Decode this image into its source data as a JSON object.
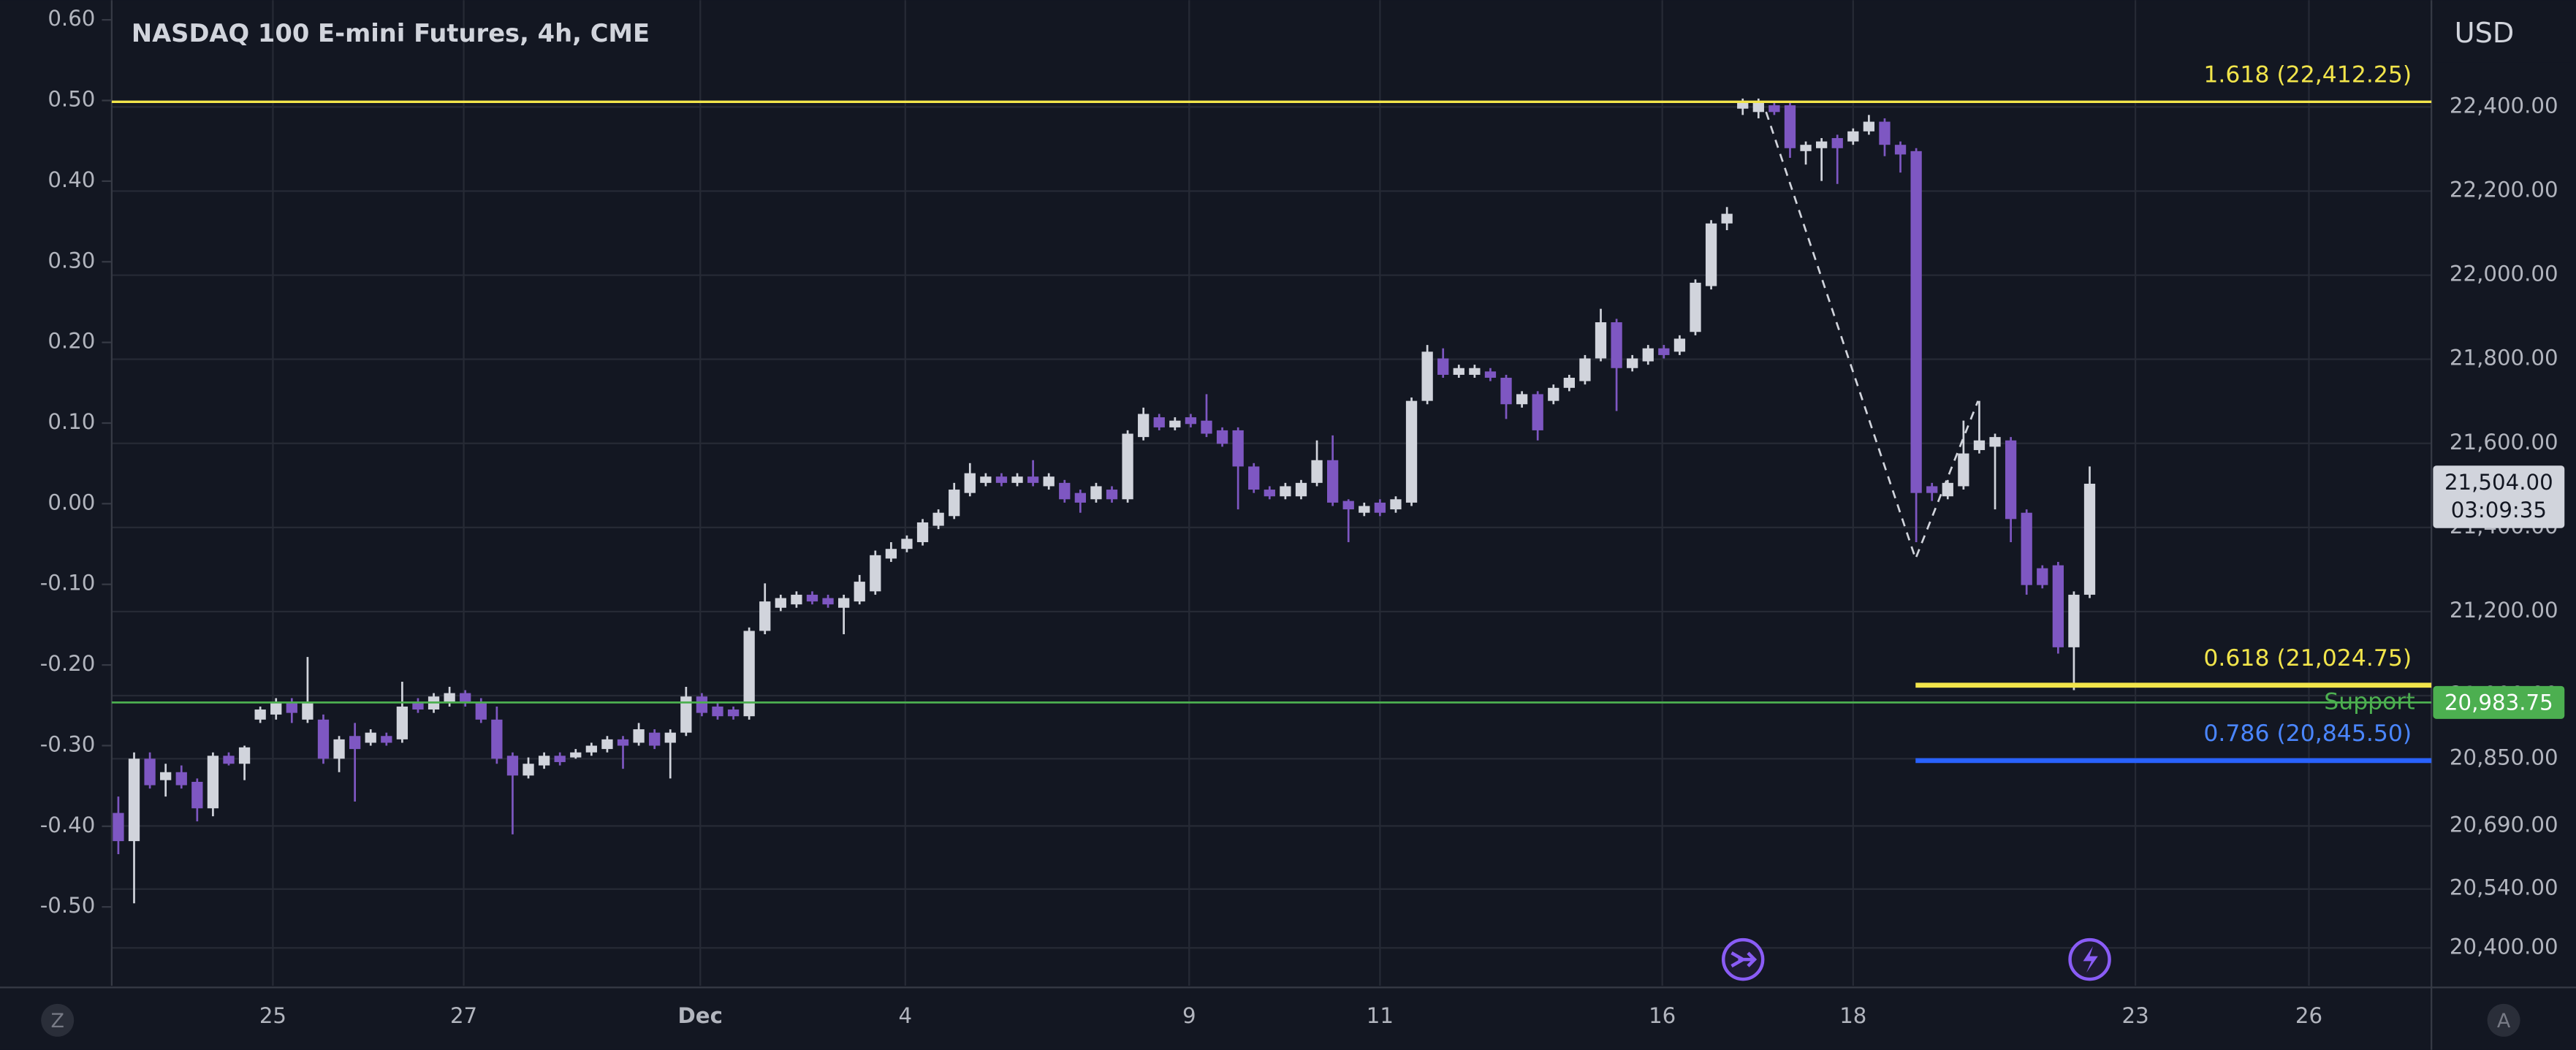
{
  "chart_data": {
    "type": "candlestick",
    "title": "NASDAQ 100 E-mini Futures, 4h, CME",
    "currency": "USD",
    "up_color": "#d1d4dc",
    "down_color": "#7e57c2",
    "grid": true,
    "xlim": [
      -0.42,
      146.67
    ],
    "xticks": [
      {
        "value": 9.8,
        "label": "25"
      },
      {
        "value": 21.9,
        "label": "27"
      },
      {
        "value": 36.9,
        "label": "Dec"
      },
      {
        "value": 49.9,
        "label": "4"
      },
      {
        "value": 67.9,
        "label": "9"
      },
      {
        "value": 80,
        "label": "11"
      },
      {
        "value": 97.9,
        "label": "16"
      },
      {
        "value": 110,
        "label": "18"
      },
      {
        "value": 127.9,
        "label": "23"
      },
      {
        "value": 138.9,
        "label": "26"
      }
    ],
    "ylim": [
      20310,
      22654
    ],
    "yticks": [
      {
        "value": 22400,
        "label": "22,400.00"
      },
      {
        "value": 22200,
        "label": "22,200.00"
      },
      {
        "value": 22000,
        "label": "22,000.00"
      },
      {
        "value": 21800,
        "label": "21,800.00"
      },
      {
        "value": 21600,
        "label": "21,600.00"
      },
      {
        "value": 21400,
        "label": "21,400.00"
      },
      {
        "value": 21200,
        "label": "21,200.00"
      },
      {
        "value": 21000,
        "label": "21,000.00"
      },
      {
        "value": 20850,
        "label": "20,850.00"
      },
      {
        "value": 20690,
        "label": "20,690.00"
      },
      {
        "value": 20540,
        "label": "20,540.00"
      },
      {
        "value": 20400,
        "label": "20,400.00"
      }
    ],
    "y2lim": [
      -0.5978,
      0.6244
    ],
    "y2ticks": [
      {
        "value": 0.6,
        "label": "0.60"
      },
      {
        "value": 0.5,
        "label": "0.50"
      },
      {
        "value": 0.4,
        "label": "0.40"
      },
      {
        "value": 0.3,
        "label": "0.30"
      },
      {
        "value": 0.2,
        "label": "0.20"
      },
      {
        "value": 0.1,
        "label": "0.10"
      },
      {
        "value": 0,
        "label": "0.00"
      },
      {
        "value": -0.1,
        "label": "-0.10"
      },
      {
        "value": -0.2,
        "label": "-0.20"
      },
      {
        "value": -0.3,
        "label": "-0.30"
      },
      {
        "value": -0.4,
        "label": "-0.40"
      },
      {
        "value": -0.5,
        "label": "-0.50"
      }
    ],
    "open": [
      20721,
      20654,
      20850,
      20799,
      20818,
      20795,
      20732,
      20857,
      20838,
      20943,
      20955,
      20982,
      20943,
      20943,
      20850,
      20904,
      20888,
      20904,
      20896,
      20982,
      20967,
      20982,
      21006,
      20982,
      20943,
      20857,
      20810,
      20834,
      20857,
      20853,
      20865,
      20873,
      20896,
      20888,
      20912,
      20888,
      20912,
      20998,
      20974,
      20967,
      20951,
      21154,
      21209,
      21217,
      21240,
      21232,
      21209,
      21224,
      21248,
      21326,
      21349,
      21365,
      21404,
      21427,
      21482,
      21506,
      21521,
      21506,
      21521,
      21498,
      21506,
      21482,
      21467,
      21490,
      21467,
      21615,
      21662,
      21638,
      21662,
      21654,
      21631,
      21631,
      21545,
      21490,
      21474,
      21474,
      21506,
      21560,
      21463,
      21435,
      21459,
      21443,
      21459,
      21701,
      21802,
      21763,
      21763,
      21771,
      21756,
      21693,
      21717,
      21701,
      21732,
      21748,
      21802,
      21888,
      21779,
      21795,
      21826,
      21818,
      21865,
      21974,
      22123,
      22396,
      22388,
      22404,
      22404,
      22295,
      22302,
      22326,
      22318,
      22342,
      22365,
      22310,
      22295,
      21498,
      21474,
      21498,
      21584,
      21592,
      21607,
      21435,
      21303,
      21310,
      21115,
      21240
    ],
    "high": [
      20760,
      20865,
      20865,
      20838,
      20834,
      20803,
      20865,
      20865,
      20881,
      20974,
      20994,
      20994,
      21092,
      20955,
      20904,
      20935,
      20920,
      20912,
      21033,
      20994,
      21006,
      21021,
      21013,
      20994,
      20974,
      20865,
      20853,
      20865,
      20865,
      20873,
      20888,
      20904,
      20904,
      20935,
      20920,
      20920,
      21021,
      21006,
      20982,
      20974,
      21162,
      21267,
      21240,
      21248,
      21248,
      21240,
      21240,
      21287,
      21345,
      21365,
      21381,
      21420,
      21443,
      21506,
      21553,
      21529,
      21529,
      21529,
      21560,
      21529,
      21513,
      21490,
      21506,
      21498,
      21631,
      21685,
      21670,
      21662,
      21670,
      21717,
      21638,
      21638,
      21553,
      21498,
      21506,
      21513,
      21607,
      21619,
      21467,
      21459,
      21467,
      21474,
      21709,
      21834,
      21826,
      21787,
      21787,
      21779,
      21763,
      21724,
      21724,
      21740,
      21763,
      21810,
      21920,
      21896,
      21810,
      21834,
      21834,
      21857,
      21990,
      22131,
      22162,
      22420,
      22420,
      22412,
      22412,
      22318,
      22326,
      22334,
      22349,
      22381,
      22373,
      22318,
      22302,
      21506,
      21513,
      21654,
      21701,
      21623,
      21615,
      21443,
      21310,
      21318,
      21248,
      21545
    ],
    "low": [
      20623,
      20506,
      20779,
      20760,
      20779,
      20701,
      20713,
      20834,
      20799,
      20935,
      20943,
      20935,
      20935,
      20838,
      20818,
      20748,
      20881,
      20881,
      20888,
      20959,
      20959,
      20974,
      20974,
      20935,
      20838,
      20670,
      20803,
      20826,
      20834,
      20850,
      20857,
      20865,
      20826,
      20881,
      20873,
      20803,
      20904,
      20951,
      20943,
      20943,
      20943,
      21146,
      21201,
      21209,
      21217,
      21209,
      21146,
      21217,
      21240,
      21318,
      21341,
      21357,
      21396,
      21420,
      21474,
      21498,
      21498,
      21498,
      21498,
      21490,
      21459,
      21435,
      21459,
      21459,
      21459,
      21607,
      21631,
      21631,
      21638,
      21615,
      21592,
      21443,
      21482,
      21467,
      21467,
      21467,
      21498,
      21451,
      21365,
      21427,
      21427,
      21435,
      21451,
      21693,
      21756,
      21756,
      21756,
      21748,
      21658,
      21685,
      21607,
      21693,
      21724,
      21740,
      21795,
      21677,
      21771,
      21787,
      21802,
      21810,
      21857,
      21966,
      22107,
      22381,
      22373,
      22381,
      22279,
      22263,
      22224,
      22217,
      22310,
      22334,
      22283,
      22244,
      21365,
      21463,
      21467,
      21490,
      21576,
      21443,
      21365,
      21240,
      21255,
      21100,
      21013,
      21232
    ],
    "close": [
      20654,
      20850,
      20787,
      20818,
      20787,
      20732,
      20857,
      20838,
      20877,
      20967,
      20982,
      20959,
      20982,
      20850,
      20896,
      20873,
      20912,
      20888,
      20974,
      20967,
      20998,
      21006,
      20982,
      20943,
      20850,
      20810,
      20838,
      20857,
      20842,
      20865,
      20881,
      20896,
      20881,
      20920,
      20881,
      20912,
      20998,
      20959,
      20951,
      20951,
      21154,
      21224,
      21232,
      21240,
      21224,
      21217,
      21232,
      21271,
      21334,
      21349,
      21373,
      21412,
      21435,
      21490,
      21529,
      21521,
      21506,
      21521,
      21506,
      21521,
      21467,
      21459,
      21498,
      21467,
      21623,
      21670,
      21638,
      21654,
      21646,
      21623,
      21599,
      21545,
      21490,
      21474,
      21498,
      21506,
      21560,
      21459,
      21443,
      21451,
      21435,
      21467,
      21701,
      21818,
      21763,
      21779,
      21779,
      21756,
      21693,
      21717,
      21631,
      21732,
      21756,
      21802,
      21888,
      21779,
      21802,
      21826,
      21810,
      21849,
      21982,
      22123,
      22146,
      22412,
      22412,
      22388,
      22302,
      22310,
      22318,
      22302,
      22342,
      22365,
      22310,
      22287,
      21482,
      21482,
      21506,
      21576,
      21607,
      21615,
      21420,
      21263,
      21263,
      21115,
      21240,
      21504
    ],
    "levels": [
      {
        "label": "1.618 (22,412.25)",
        "value": 22412.25,
        "color": "#f2e54b",
        "full": true
      },
      {
        "label": "0.618 (21,024.75)",
        "value": 21024.75,
        "color": "#f2e54b",
        "full": false
      },
      {
        "label": "0.786 (20,845.50)",
        "value": 20845.5,
        "color": "#2962ff",
        "text_color": "#4a86ff",
        "full": false
      }
    ],
    "support": {
      "label": "Support",
      "value": 20983.75,
      "price_label": "20,983.75",
      "color": "#4caf50"
    },
    "last_price": {
      "value": 21504,
      "label": "21,504.00",
      "countdown": "03:09:35"
    },
    "buttons": {
      "left": "Z",
      "right": "A"
    }
  }
}
